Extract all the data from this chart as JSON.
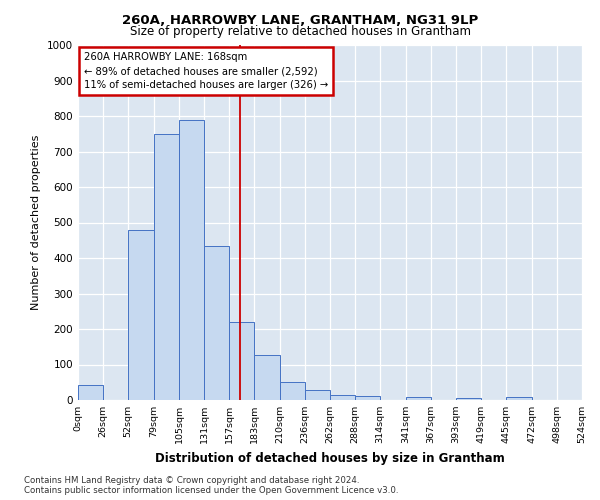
{
  "title1": "260A, HARROWBY LANE, GRANTHAM, NG31 9LP",
  "title2": "Size of property relative to detached houses in Grantham",
  "xlabel": "Distribution of detached houses by size in Grantham",
  "ylabel": "Number of detached properties",
  "bin_labels": [
    "0sqm",
    "26sqm",
    "52sqm",
    "79sqm",
    "105sqm",
    "131sqm",
    "157sqm",
    "183sqm",
    "210sqm",
    "236sqm",
    "262sqm",
    "288sqm",
    "314sqm",
    "341sqm",
    "367sqm",
    "393sqm",
    "419sqm",
    "445sqm",
    "472sqm",
    "498sqm",
    "524sqm"
  ],
  "bar_heights": [
    42,
    0,
    480,
    750,
    790,
    435,
    220,
    127,
    52,
    28,
    15,
    10,
    0,
    8,
    0,
    7,
    0,
    8,
    0,
    0
  ],
  "bar_color": "#c6d9f0",
  "bar_edge_color": "#4472c4",
  "property_line_x": 168,
  "bin_edges": [
    0,
    26,
    52,
    79,
    105,
    131,
    157,
    183,
    210,
    236,
    262,
    288,
    314,
    341,
    367,
    393,
    419,
    445,
    472,
    498,
    524
  ],
  "annotation_text": "260A HARROWBY LANE: 168sqm\n← 89% of detached houses are smaller (2,592)\n11% of semi-detached houses are larger (326) →",
  "annotation_box_color": "#cc0000",
  "background_color": "#dce6f1",
  "footer_text": "Contains HM Land Registry data © Crown copyright and database right 2024.\nContains public sector information licensed under the Open Government Licence v3.0.",
  "ylim": [
    0,
    1000
  ],
  "figsize": [
    6.0,
    5.0
  ],
  "dpi": 100
}
